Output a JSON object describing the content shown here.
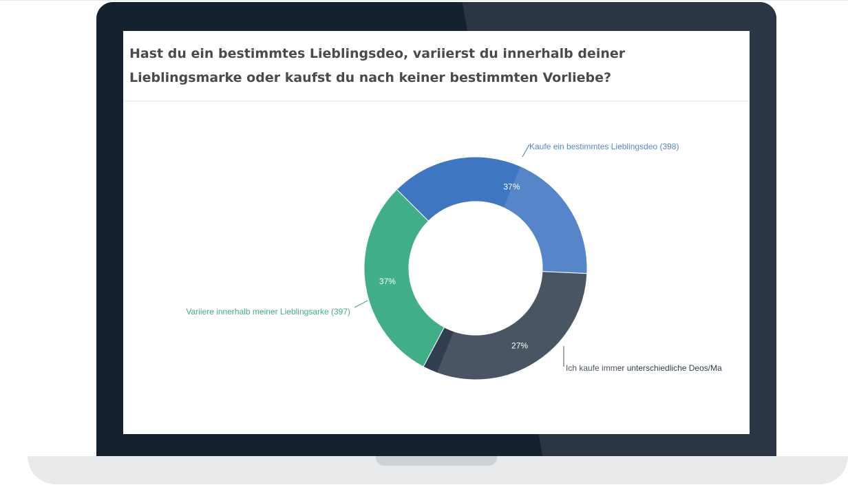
{
  "chart_data": {
    "type": "pie",
    "title": "Hast du ein bestimmtes Lieblingsdeo, variierst du innerhalb deiner Lieblingsmarke oder kaufst du nach keiner bestimmten Vorliebe?",
    "donut": true,
    "slices": [
      {
        "label": "Kaufe ein bestimmtes Lieblingsdeo (398)",
        "count": 398,
        "percent_label": "37%",
        "color": "#3f76c2"
      },
      {
        "label": "Ich kaufe immer unterschiedliche Deos/Ma",
        "count": 290,
        "percent_label": "27%",
        "color": "#313e4f"
      },
      {
        "label": "Variiere innerhalb meiner Lieblingsarke (397)",
        "count": 397,
        "percent_label": "37%",
        "color": "#40ae86"
      }
    ]
  }
}
